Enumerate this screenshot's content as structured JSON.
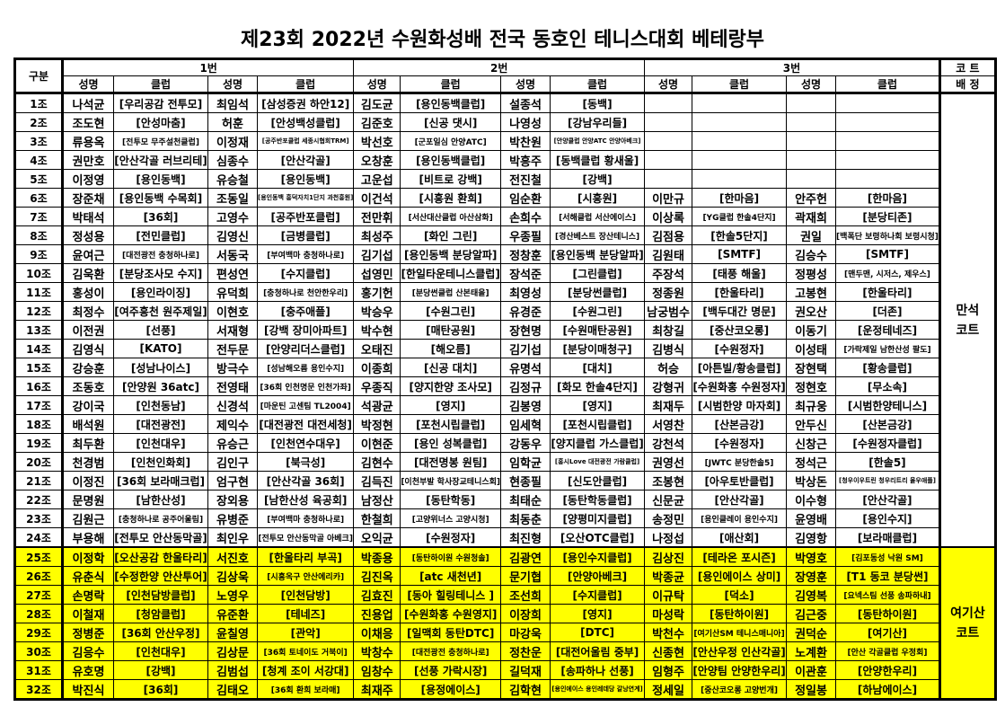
{
  "title": "제23회 2022년 수원화성배 전국 동호인 테니스대회 베테랑부",
  "header": {
    "gubun": "구분",
    "groups": [
      "1번",
      "2번",
      "3번"
    ],
    "name": "성명",
    "club": "클럽",
    "court_top": "코 트",
    "court_bottom": "배 정"
  },
  "courts": [
    {
      "line1": "만석",
      "line2": "코트",
      "rows": "1-24"
    },
    {
      "line1": "여기산",
      "line2": "코트",
      "rows": "25-32",
      "color": "#ffff00"
    }
  ],
  "rows": [
    {
      "label": "1조",
      "cells": [
        "나석균",
        "[우리공감 전투모]",
        "최임석",
        "[삼성증권 하안12]",
        "김도균",
        "[용인동백클럽]",
        "설종석",
        "[동백]",
        "",
        "",
        "",
        ""
      ]
    },
    {
      "label": "2조",
      "cells": [
        "조도현",
        "[안성마춤]",
        "허훈",
        "[안성백성클럽]",
        "김준호",
        "[신공 댓시]",
        "나영성",
        "[강남우리들]",
        "",
        "",
        "",
        ""
      ]
    },
    {
      "label": "3조",
      "cells": [
        "류용옥",
        "[전투모 무주설천클럽]",
        "이정재",
        "[공주반포클럽 세종시협회TRM]",
        "박선호",
        "[군포일심 안양ATC]",
        "박찬원",
        "[안양클럽 안양ATC 안양아베크]",
        "",
        "",
        "",
        ""
      ]
    },
    {
      "label": "4조",
      "cells": [
        "권만호",
        "[안산각골 러브리테]",
        "심종수",
        "[안산각골]",
        "오창훈",
        "[용인동백클럽]",
        "박흥주",
        "[동백클럽 황새울]",
        "",
        "",
        "",
        ""
      ]
    },
    {
      "label": "5조",
      "cells": [
        "이정영",
        "[용인동백]",
        "유승철",
        "[용인동백]",
        "고운섭",
        "[비트로 강백]",
        "전진철",
        "[강백]",
        "",
        "",
        "",
        ""
      ]
    },
    {
      "label": "6조",
      "cells": [
        "장준채",
        "[용인동백 수목회]",
        "조동일",
        "[용인동백 흥덕자치1단지 과천흥원]",
        "이건석",
        "[시흥원 환희]",
        "임순환",
        "[시흥원]",
        "이만규",
        "[한마음]",
        "안주헌",
        "[한마음]"
      ]
    },
    {
      "label": "7조",
      "cells": [
        "박태석",
        "[36회]",
        "고영수",
        "[공주반포클럽]",
        "전만휘",
        "[서산대산클럽 아산삼화]",
        "손희수",
        "[서해클럽 서산에이스]",
        "이상록",
        "[YG클럽 한솔4단지]",
        "곽재희",
        "[분당티존]"
      ]
    },
    {
      "label": "8조",
      "cells": [
        "정성용",
        "[전민클럽]",
        "김영신",
        "[금병클럽]",
        "최성주",
        "[화인 그린]",
        "우종필",
        "[경산베스트 장산테니스]",
        "김점용",
        "[한솔5단지]",
        "권일",
        "[백폭단 보령하나회 보령시청]"
      ]
    },
    {
      "label": "9조",
      "cells": [
        "윤여근",
        "[대전광전 충청하나로]",
        "서동국",
        "[부여백마 충청하나로]",
        "김기섭",
        "[용인동백 분당알파]",
        "정창훈",
        "[용인동백 분당알파]",
        "김원태",
        "[SMTF]",
        "김승수",
        "[SMTF]"
      ]
    },
    {
      "label": "10조",
      "cells": [
        "김욱환",
        "[분당조사모 수지]",
        "편성연",
        "[수지클럽]",
        "섭영민",
        "[한일타운테니스클럽]",
        "장석준",
        "[그린클럽]",
        "주장석",
        "[태풍 해울]",
        "정평성",
        "[맨두맨, 시저스, 제우스]"
      ]
    },
    {
      "label": "11조",
      "cells": [
        "홍성이",
        "[용인라이징]",
        "유덕희",
        "[충청하나로 천안한우리]",
        "홍기헌",
        "[분당썬클럽 산본태을]",
        "최영성",
        "[분당썬클럽]",
        "정종원",
        "[한울타리]",
        "고봉현",
        "[한울타리]"
      ]
    },
    {
      "label": "12조",
      "cells": [
        "최정수",
        "[여주흥천 원주제일]",
        "이현호",
        "[충주애플]",
        "박승우",
        "[수원그린]",
        "유경준",
        "[수원그린]",
        "남궁범수",
        "[백두대간 명문]",
        "권오산",
        "[더존]"
      ]
    },
    {
      "label": "13조",
      "cells": [
        "이전권",
        "[선풍]",
        "서재형",
        "[강백 장미아파트]",
        "박수현",
        "[매탄공원]",
        "장현명",
        "[수원매탄공원]",
        "최창길",
        "[중산코오롱]",
        "이동기",
        "[운정테네즈]"
      ]
    },
    {
      "label": "14조",
      "cells": [
        "김영식",
        "[KATO]",
        "전두문",
        "[안양리더스클럽]",
        "오태진",
        "[해오름]",
        "김기섭",
        "[분당이매청구]",
        "김병식",
        "[수원정자]",
        "이성태",
        "[가락제일 남한산성 팔도]"
      ]
    },
    {
      "label": "15조",
      "cells": [
        "강승훈",
        "[성남나이스]",
        "방극수",
        "[성남해오름 용인수지]",
        "이종희",
        "[신공 대치]",
        "유명석",
        "[대치]",
        "허승",
        "[아튼빌/황송클럽]",
        "장현택",
        "[황송클럽]"
      ]
    },
    {
      "label": "16조",
      "cells": [
        "조동호",
        "[안양원 36atc]",
        "전영태",
        "[36회 인천명문 인천가좌]",
        "우종직",
        "[양지한양 조사모]",
        "김정규",
        "[화모 한솔4단지]",
        "강형귀",
        "[수원화홍 수원정자]",
        "정현호",
        "[무소속]"
      ]
    },
    {
      "label": "17조",
      "cells": [
        "강이국",
        "[인천동남]",
        "신경석",
        "[마운틴 고센팀 TL2004]",
        "석광균",
        "[영지]",
        "김봉영",
        "[영지]",
        "최재두",
        "[시범한양 마자회]",
        "최규웅",
        "[시범한양테니스]"
      ]
    },
    {
      "label": "18조",
      "cells": [
        "배석원",
        "[대전광전]",
        "제익수",
        "[대전광전 대전세청]",
        "박정현",
        "[포천시립클럽]",
        "임세혁",
        "[포천시립클럽]",
        "서영찬",
        "[산본금강]",
        "안두신",
        "[산본금강]"
      ]
    },
    {
      "label": "19조",
      "cells": [
        "최두환",
        "[인천대우]",
        "유승근",
        "[인천연수대우]",
        "이현준",
        "[용인 성복클럽]",
        "강동우",
        "[양지클럽 가스클럽]",
        "강천석",
        "[수원정자]",
        "신창근",
        "[수원정자클럽]"
      ]
    },
    {
      "label": "20조",
      "cells": [
        "천경범",
        "[인천인화회]",
        "김인구",
        "[북극성]",
        "김현수",
        "[대전명봉 원팀]",
        "임학균",
        "[홍시Love 대전광전 가람클럽]",
        "권영선",
        "[JWTC 분당한솔5]",
        "정석근",
        "[한솔5]"
      ]
    },
    {
      "label": "21조",
      "cells": [
        "이정진",
        "[36회 보라매크럽]",
        "엄구현",
        "[안산각골 36회]",
        "김득진",
        "[이천부발 학사장교테니스회]",
        "현종필",
        "[신도안클럽]",
        "조봉현",
        "[아우토반클럽]",
        "박상돈",
        "[청우이우트린 청우리트리 율우애플]"
      ]
    },
    {
      "label": "22조",
      "cells": [
        "문명원",
        "[남한산성]",
        "장외용",
        "[남한산성 육공회]",
        "남정산",
        "[동탄학동]",
        "최태순",
        "[동탄학동클럽]",
        "신문균",
        "[안산각골]",
        "이수형",
        "[안산각골]"
      ]
    },
    {
      "label": "23조",
      "cells": [
        "김원근",
        "[충청하나로 공주어울림]",
        "유병준",
        "[부여백마 충청하나로]",
        "한철희",
        "[고양위너스 고양시청]",
        "최동춘",
        "[양평미지클럽]",
        "송정민",
        "[용인클레이 용인수지]",
        "윤영배",
        "[용인수지]"
      ]
    },
    {
      "label": "24조",
      "cells": [
        "부용해",
        "[전투모 안산동막골]",
        "최인우",
        "[전투모 안산동막골 아베크]",
        "오익균",
        "[수원정자]",
        "최진형",
        "[오산OTC클럽]",
        "나정섭",
        "[애산회]",
        "김영항",
        "[보라매클럽]"
      ]
    },
    {
      "label": "25조",
      "cells": [
        "이정학",
        "[오산공감 한울타리]",
        "서진호",
        "[한울타리 부곡]",
        "박종용",
        "[동탄하이원 수원청솔]",
        "김광연",
        "[용인수지클럽]",
        "김상진",
        "[테라온 포시즌]",
        "박영호",
        "[김포동성 낙원 SM]"
      ]
    },
    {
      "label": "26조",
      "cells": [
        "유춘식",
        "[수정한양 안산투어]",
        "김상욱",
        "[시흥옥구 안산에리카]",
        "김진옥",
        "[atc 새천년]",
        "문기협",
        "[안양아베크]",
        "박종균",
        "[용인에이스 상미]",
        "장영훈",
        "[T1 동코 분당썬]"
      ]
    },
    {
      "label": "27조",
      "cells": [
        "손명락",
        "[인천담방클럽]",
        "노영우",
        "[인천담방]",
        "김효진",
        "[동아 힐링테니스 ]",
        "조선희",
        "[수지클럽]",
        "이규탁",
        "[덕소]",
        "김영복",
        "[요넥스팀 선풍 송파하내]"
      ]
    },
    {
      "label": "28조",
      "cells": [
        "이철재",
        "[청암클럽]",
        "유준환",
        "[테네즈]",
        "진용업",
        "[수원화홍 수원영지]",
        "이장희",
        "[영지]",
        "마성락",
        "[동탄하이원]",
        "김근중",
        "[동탄하이원]"
      ]
    },
    {
      "label": "29조",
      "cells": [
        "정병준",
        "[36회 안산우정]",
        "윤칠영",
        "[관악]",
        "이채응",
        "[일맥회 동탄DTC]",
        "마강욱",
        "[DTC]",
        "박천수",
        "[여기산SM 테니스매니아]",
        "권덕순",
        "[여기산]"
      ]
    },
    {
      "label": "30조",
      "cells": [
        "김응수",
        "[인천대우]",
        "김상문",
        "[36회 토네이도 거북이]",
        "박창수",
        "[대전광전 충청하나로]",
        "정찬운",
        "[대전어울림 중부]",
        "신종현",
        "[안산우정 인산각골]",
        "노계환",
        "[안산 각골클럽 우정회]"
      ]
    },
    {
      "label": "31조",
      "cells": [
        "유호명",
        "[강백]",
        "김범섭",
        "[청계 조이 서강대]",
        "임창수",
        "[선풍 가락시장]",
        "길덕재",
        "[송파하나 선풍]",
        "임형주",
        "[안양팀 안양한우리]",
        "이관훈",
        "[안양한우리]"
      ]
    },
    {
      "label": "32조",
      "cells": [
        "박진식",
        "[36회]",
        "김태오",
        "[36회 환희 보라매]",
        "최재주",
        "[용정에이스]",
        "김학현",
        "[용인에이스 용인레데당 갈낭연계]",
        "정세일",
        "[중산코오롱 고양번개]",
        "정일봉",
        "[하남에이스]"
      ]
    }
  ]
}
